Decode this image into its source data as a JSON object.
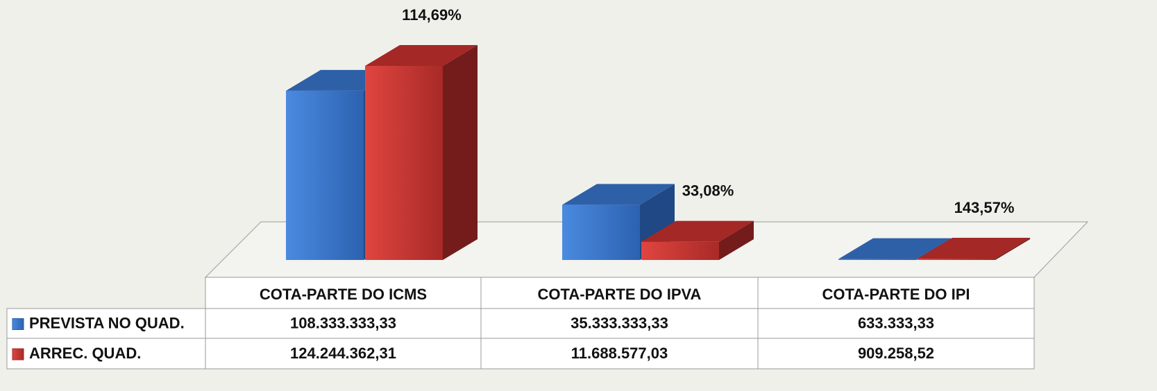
{
  "chart_data": {
    "type": "bar3d",
    "categories": [
      "COTA-PARTE DO ICMS",
      "COTA-PARTE DO IPVA",
      "COTA-PARTE DO IPI"
    ],
    "series": [
      {
        "name": "PREVISTA NO QUAD.",
        "color": "#3a7bd5",
        "values": [
          108333333.33,
          35333333.33,
          633333.33
        ],
        "value_labels": [
          "108.333.333,33",
          "35.333.333,33",
          "633.333,33"
        ]
      },
      {
        "name": "ARREC. QUAD.",
        "color": "#d33a35",
        "values": [
          124244362.31,
          11688577.03,
          909258.52
        ],
        "value_labels": [
          "124.244.362,31",
          "11.688.577,03",
          "909.258,52"
        ]
      }
    ],
    "annotations": [
      "114,69%",
      "33,08%",
      "143,57%"
    ]
  }
}
